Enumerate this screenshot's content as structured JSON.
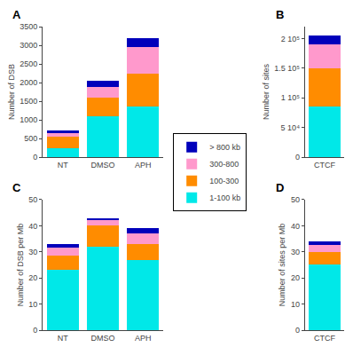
{
  "chart_data": [
    {
      "type": "bar",
      "title": "A",
      "stacked": true,
      "grid": false,
      "legend": "center",
      "categories": [
        "NT",
        "DMSO",
        "APH"
      ],
      "series": [
        {
          "name": "1-100 kb",
          "color": "#00e8e8",
          "values": [
            250,
            1100,
            1350
          ]
        },
        {
          "name": "100-300",
          "color": "#ff8c00",
          "values": [
            305,
            500,
            900
          ]
        },
        {
          "name": "300-800",
          "color": "#ff99cc",
          "values": [
            80,
            290,
            700
          ]
        },
        {
          "name": "> 800 kb",
          "color": "#0000bb",
          "values": [
            70,
            160,
            250
          ]
        }
      ],
      "ylabel": "Number of DSB",
      "ylim": [
        0,
        3500
      ],
      "yticks": [
        0,
        500,
        1000,
        1500,
        2000,
        2500,
        3000,
        3500
      ]
    },
    {
      "type": "bar",
      "title": "B",
      "stacked": true,
      "grid": false,
      "legend": "center",
      "categories": [
        "CTCF"
      ],
      "series": [
        {
          "name": "1-100 kb",
          "color": "#00e8e8",
          "values": [
            85000
          ]
        },
        {
          "name": "100-300",
          "color": "#ff8c00",
          "values": [
            65000
          ]
        },
        {
          "name": "300-800",
          "color": "#ff99cc",
          "values": [
            40000
          ]
        },
        {
          "name": "> 800 kb",
          "color": "#0000bb",
          "values": [
            15000
          ]
        }
      ],
      "ylabel": "Number of sites",
      "ylim": [
        0,
        220000
      ],
      "yticks": [
        0,
        {
          "value": 50000,
          "label": "5 10⁴"
        },
        {
          "value": 100000,
          "label": "1 10⁵"
        },
        {
          "value": 150000,
          "label": "1.5 10⁵"
        },
        {
          "value": 200000,
          "label": "2 10⁵"
        }
      ]
    },
    {
      "type": "bar",
      "title": "C",
      "stacked": true,
      "grid": false,
      "legend": "center",
      "categories": [
        "NT",
        "DMSO",
        "APH"
      ],
      "series": [
        {
          "name": "1-100 kb",
          "color": "#00e8e8",
          "values": [
            23,
            32,
            27
          ]
        },
        {
          "name": "100-300",
          "color": "#ff8c00",
          "values": [
            5.5,
            8.0,
            6.0
          ]
        },
        {
          "name": "300-800",
          "color": "#ff99cc",
          "values": [
            3.0,
            2.0,
            4.0
          ]
        },
        {
          "name": "> 800 kb",
          "color": "#0000bb",
          "values": [
            1.5,
            1.0,
            2.0
          ]
        }
      ],
      "ylabel": "Number of DSB per Mb",
      "ylim": [
        0,
        50
      ],
      "yticks": [
        0,
        10,
        20,
        30,
        40,
        50
      ]
    },
    {
      "type": "bar",
      "title": "D",
      "stacked": true,
      "grid": false,
      "legend": "center",
      "categories": [
        "CTCF"
      ],
      "series": [
        {
          "name": "1-100 kb",
          "color": "#00e8e8",
          "values": [
            25
          ]
        },
        {
          "name": "100-300",
          "color": "#ff8c00",
          "values": [
            5.0
          ]
        },
        {
          "name": "300-800",
          "color": "#ff99cc",
          "values": [
            2.5
          ]
        },
        {
          "name": "> 800 kb",
          "color": "#0000bb",
          "values": [
            1.5
          ]
        }
      ],
      "ylabel": "Number of sites per Mb",
      "ylim": [
        0,
        50
      ],
      "yticks": [
        0,
        10,
        20,
        30,
        40,
        50
      ]
    }
  ]
}
